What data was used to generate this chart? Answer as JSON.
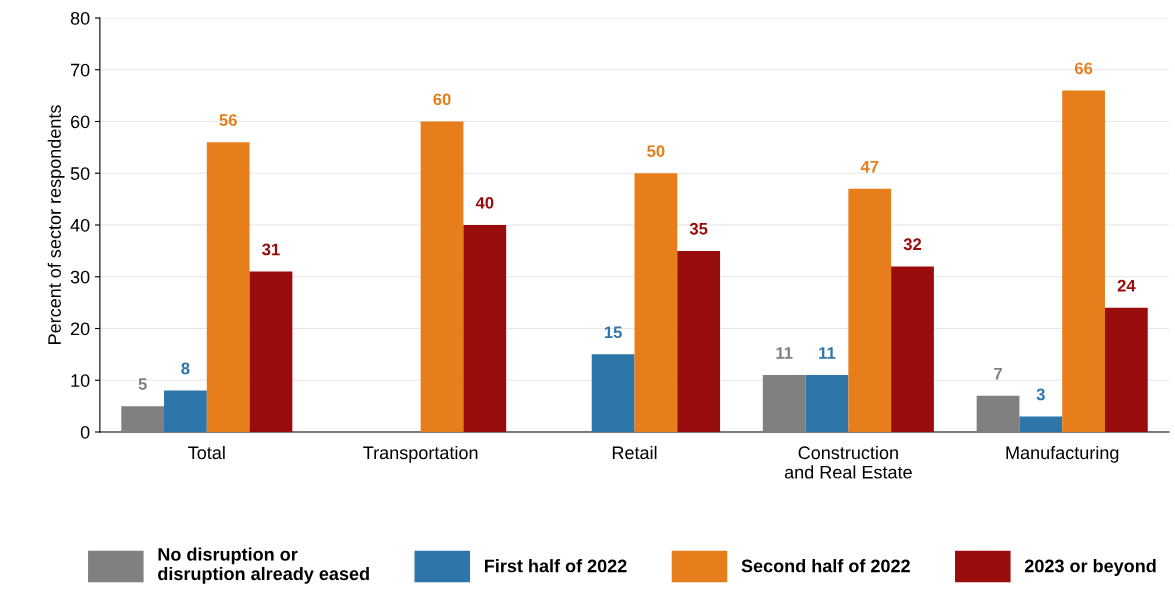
{
  "chart_data": {
    "type": "bar",
    "ylabel": "Percent of sector respondents",
    "categories": [
      "Total",
      "Transportation",
      "Retail",
      "Construction\nand Real Estate",
      "Manufacturing"
    ],
    "series": [
      {
        "name": "No disruption or\ndisruption already eased",
        "color": "#808080",
        "values": [
          5,
          null,
          null,
          11,
          7
        ]
      },
      {
        "name": "First half of 2022",
        "color": "#2e75aa",
        "values": [
          8,
          null,
          15,
          11,
          3
        ]
      },
      {
        "name": "Second half of 2022",
        "color": "#e67e1c",
        "values": [
          56,
          60,
          50,
          47,
          66
        ]
      },
      {
        "name": "2023 or beyond",
        "color": "#990c0c",
        "values": [
          31,
          40,
          35,
          32,
          24
        ]
      }
    ],
    "ylim": [
      0,
      80
    ],
    "yticks": [
      0,
      10,
      20,
      30,
      40,
      50,
      60,
      70,
      80
    ],
    "grid": "y",
    "legend": "bottom",
    "data_labels": true
  }
}
